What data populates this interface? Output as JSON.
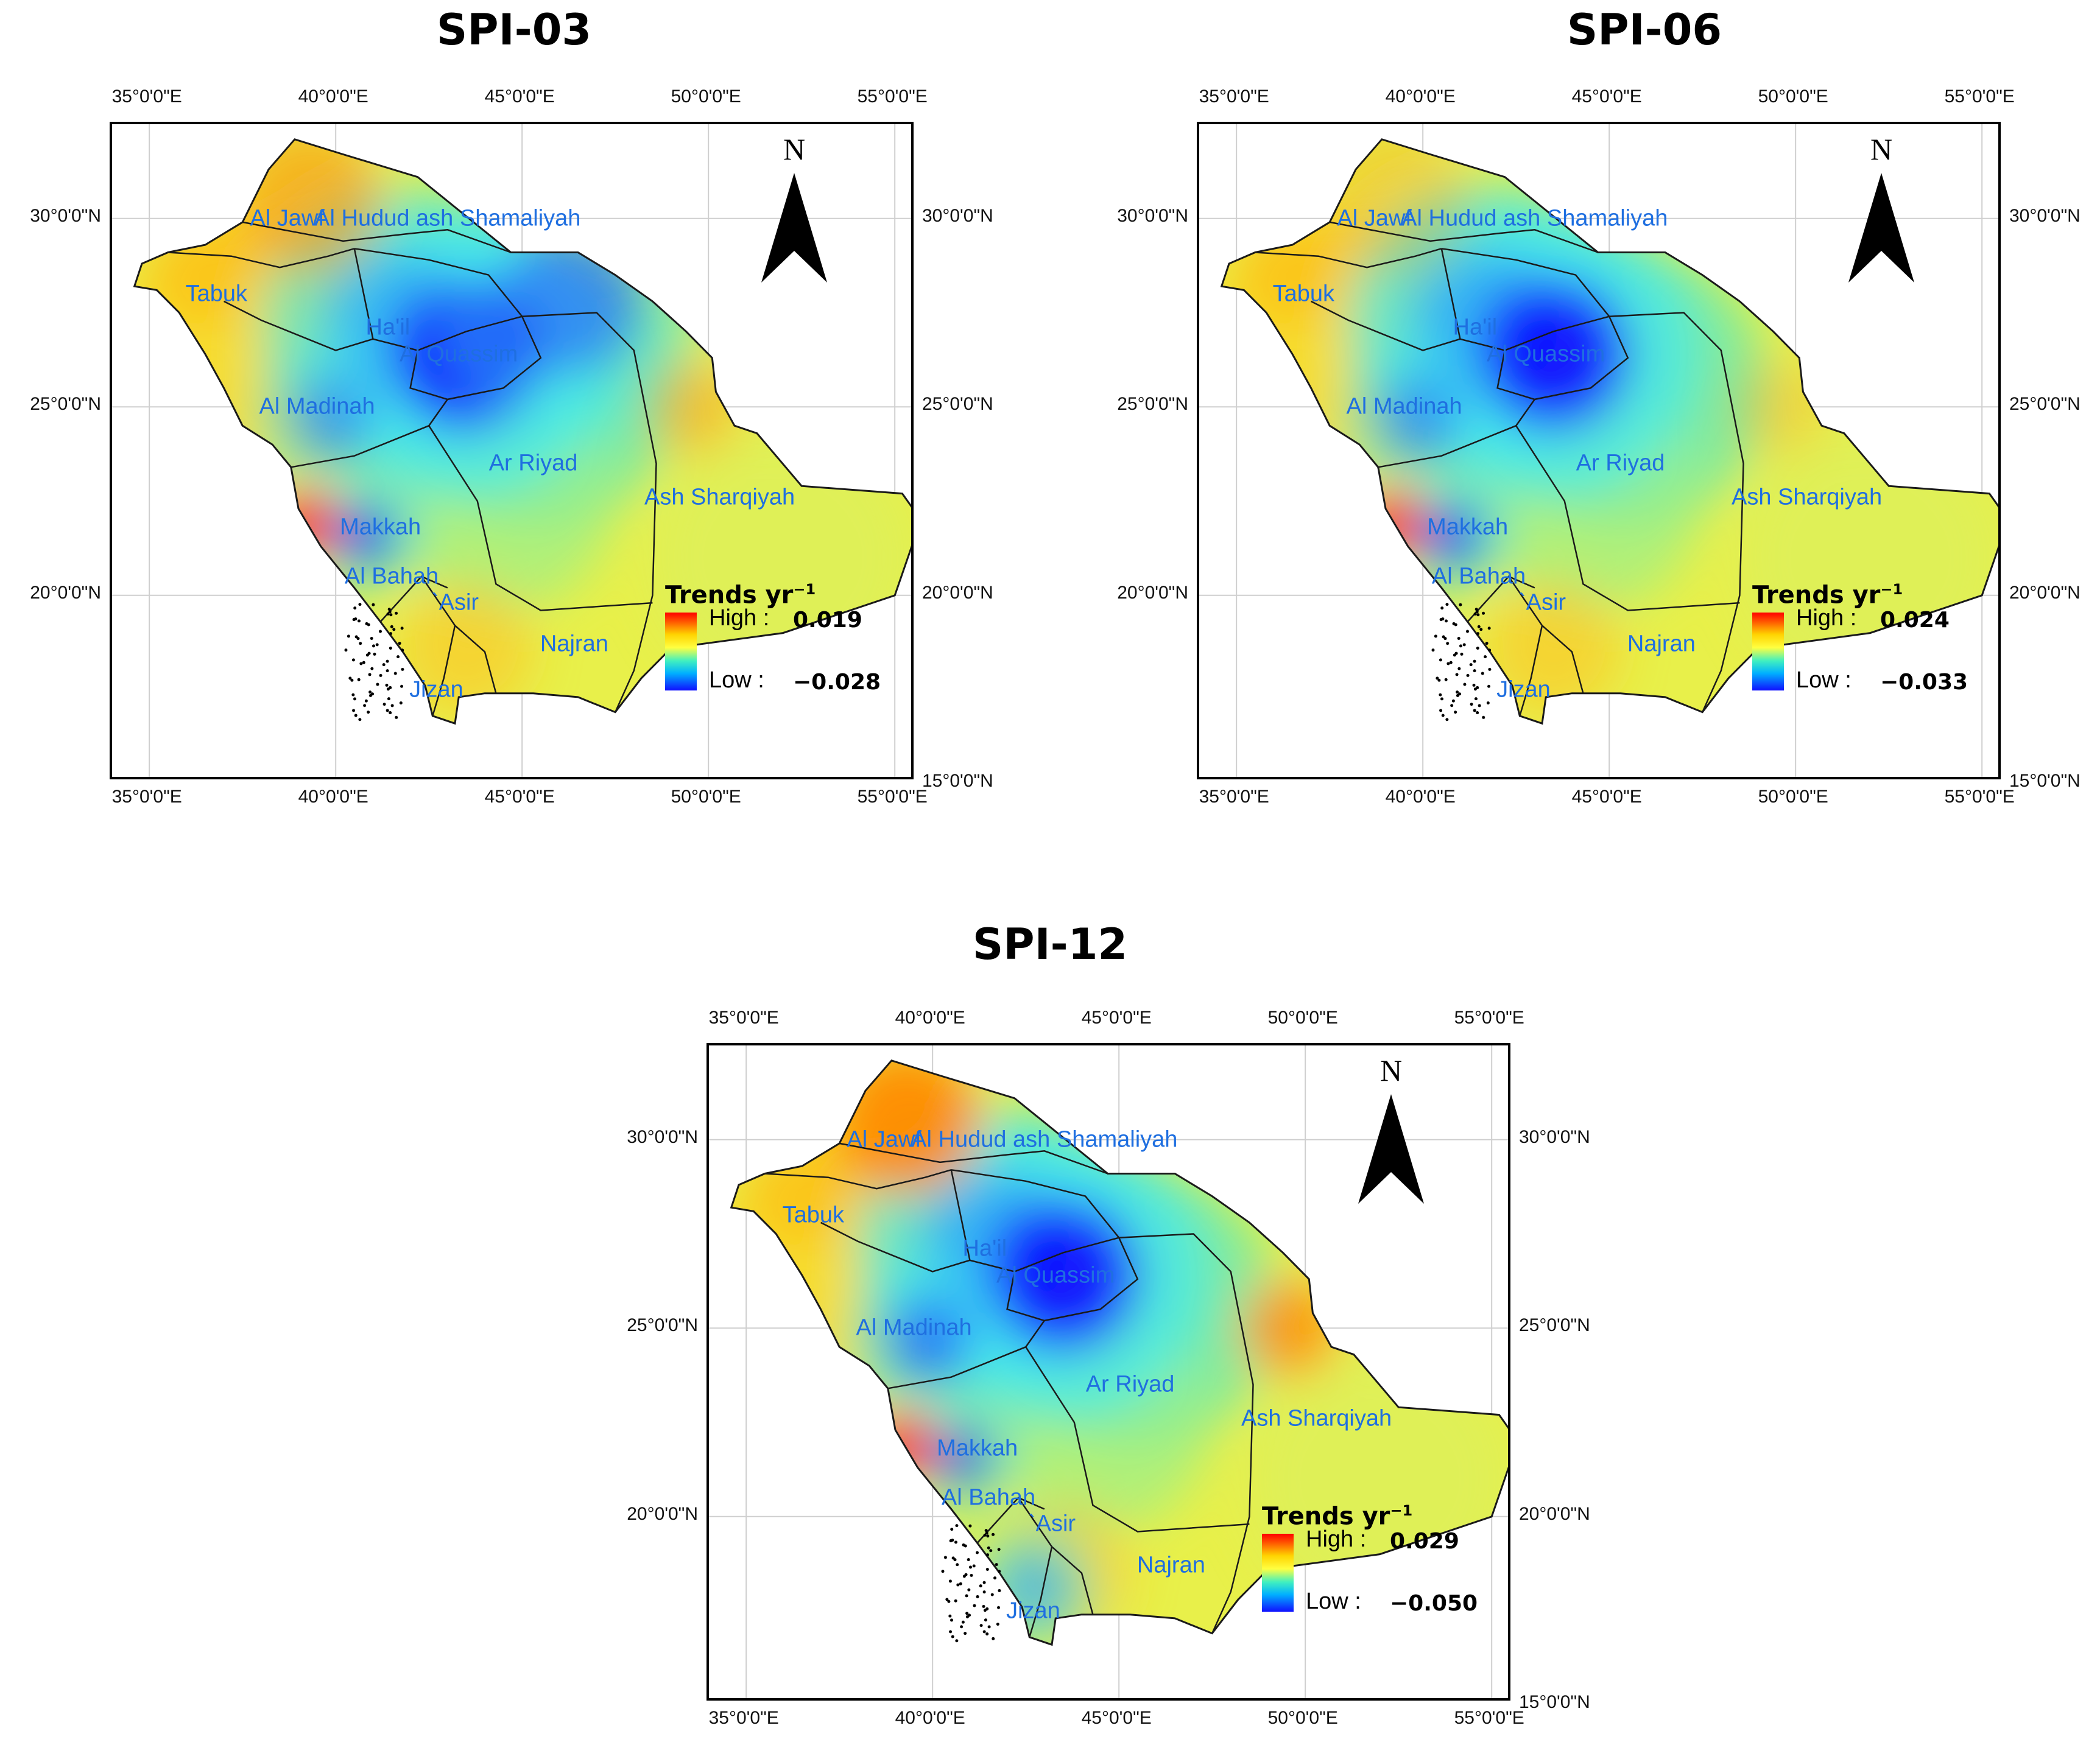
{
  "panels": [
    {
      "title": "SPI-03",
      "legend": {
        "title": "Trends yr",
        "title_sup": "−1",
        "high_label": "High :",
        "high_value": "0.019",
        "low_label": "Low :",
        "low_value": "−0.028"
      },
      "hotspots": {
        "hail": 0.85,
        "quassim": 1.0,
        "madinah": 0.55,
        "makkah": 0.8,
        "northeast": 0.55,
        "jizan": 0.0,
        "west_coast_red": 1.0,
        "jawf_orange": 0.6,
        "sharqiyah_orange": 0.5
      }
    },
    {
      "title": "SPI-06",
      "legend": {
        "title": "Trends yr",
        "title_sup": "−1",
        "high_label": "High :",
        "high_value": "0.024",
        "low_label": "Low :",
        "low_value": "−0.033"
      },
      "hotspots": {
        "hail": 1.0,
        "quassim": 1.0,
        "madinah": 0.6,
        "makkah": 0.85,
        "northeast": 0.0,
        "jizan": 0.0,
        "west_coast_red": 1.0,
        "jawf_orange": 0.3,
        "sharqiyah_orange": 0.3
      }
    },
    {
      "title": "SPI-12",
      "legend": {
        "title": "Trends yr",
        "title_sup": "−1",
        "high_label": "High :",
        "high_value": "0.029",
        "low_label": "Low :",
        "low_value": "−0.050"
      },
      "hotspots": {
        "hail": 1.0,
        "quassim": 1.0,
        "madinah": 0.8,
        "makkah": 0.7,
        "northeast": 0.0,
        "jizan": 0.7,
        "west_coast_red": 1.0,
        "jawf_orange": 1.0,
        "sharqiyah_orange": 0.9
      }
    }
  ],
  "axes": {
    "lon_ticks": [
      "35°0'0\"E",
      "40°0'0\"E",
      "45°0'0\"E",
      "50°0'0\"E",
      "55°0'0\"E"
    ],
    "lat_ticks": [
      "30°0'0\"N",
      "25°0'0\"N",
      "20°0'0\"N",
      "15°0'0\"N"
    ]
  },
  "regions": [
    "Al Jawf",
    "Al Hudud ash Shamaliyah",
    "Tabuk",
    "Ha'il",
    "Al Quassim",
    "Al Madinah",
    "Ar Riyad",
    "Ash Sharqiyah",
    "Makkah",
    "Al Bahah",
    "`Asir",
    "Najran",
    "Jizan"
  ],
  "north_arrow": {
    "letter": "N"
  },
  "colors": {
    "high": "#ff0000",
    "mid": "#ffff40",
    "low": "#1010ff",
    "labels": "#1f6fe0"
  }
}
